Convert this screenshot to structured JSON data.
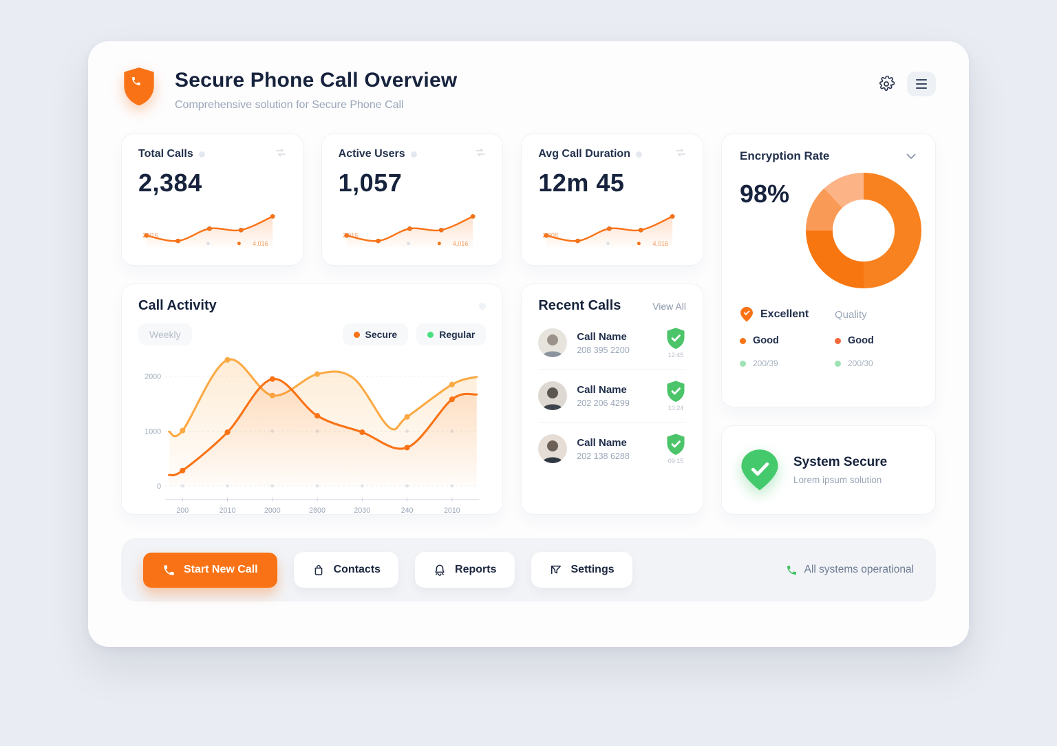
{
  "app": {
    "title": "Secure Phone Call Overview",
    "subtitle": "Comprehensive solution for Secure Phone Call"
  },
  "colors": {
    "accent": "#f97316",
    "accent_light": "#fbaa45",
    "green": "#3fc163",
    "legend_green": "#4ade80",
    "text_dark": "#17233d",
    "text_muted": "#9aa6b8",
    "page_bg": "#e9ecf2",
    "footer_bg": "#f1f3f7"
  },
  "stat_cards": [
    {
      "title": "Total Calls",
      "value": "2,384",
      "spark_label_left": "2,016",
      "spark_label_right": "4,016",
      "trend": [
        420,
        260,
        620,
        580,
        980
      ]
    },
    {
      "title": "Active Users",
      "value": "1,057",
      "spark_label_left": "2,016",
      "spark_label_right": "4,016",
      "trend": [
        420,
        260,
        620,
        580,
        980
      ]
    },
    {
      "title": "Avg Call Duration",
      "value": "12m 45",
      "spark_label_left": "2,808",
      "spark_label_right": "4,016",
      "trend": [
        420,
        260,
        620,
        580,
        980
      ]
    }
  ],
  "call_activity": {
    "title": "Call Activity",
    "period": "Weekly",
    "legend": [
      {
        "label": "Secure",
        "color": "#f97316"
      },
      {
        "label": "Regular",
        "color": "#4ade80"
      }
    ]
  },
  "chart_data": [
    {
      "type": "line",
      "title": "Call Activity (Weekly)",
      "x_ticks": [
        "200",
        "2010",
        "2000",
        "2800",
        "2030",
        "240",
        "2010"
      ],
      "y_ticks": [
        2000,
        1000,
        0
      ],
      "ylim": [
        0,
        2400
      ],
      "grid": true,
      "legend_position": "top-right",
      "series": [
        {
          "name": "Secure",
          "color": "#f97316",
          "points": [
            [
              -0.3,
              200
            ],
            [
              0,
              280
            ],
            [
              1,
              980
            ],
            [
              2,
              1950
            ],
            [
              3,
              1280
            ],
            [
              4,
              980
            ],
            [
              5,
              700
            ],
            [
              6,
              1580
            ],
            [
              6.55,
              1670
            ]
          ]
        },
        {
          "name": "Regular",
          "color": "#fbaa45",
          "points": [
            [
              -0.3,
              990
            ],
            [
              0,
              1010
            ],
            [
              1,
              2300
            ],
            [
              2,
              1650
            ],
            [
              3,
              2040
            ],
            [
              3.8,
              1970
            ],
            [
              4.6,
              1070
            ],
            [
              5,
              1260
            ],
            [
              6,
              1850
            ],
            [
              6.55,
              1990
            ]
          ]
        }
      ]
    },
    {
      "type": "donut",
      "title": "Encryption Rate",
      "center_label": "98%",
      "encrypted_pct": 98,
      "segments": [
        {
          "value": 50,
          "color": "#f8821f"
        },
        {
          "value": 25,
          "color": "#f8760f"
        },
        {
          "value": 13,
          "color": "#f99a57"
        },
        {
          "value": 12,
          "color": "#fcb487"
        }
      ]
    }
  ],
  "encryption": {
    "title": "Encryption Rate",
    "value": "98%",
    "legend": {
      "headline": "Excellent",
      "headline_caption": "Quality",
      "items": [
        {
          "label": "Good",
          "color": "#f97316"
        },
        {
          "label": "Good",
          "color": "#f4683a"
        }
      ],
      "sub_items": [
        {
          "label": "200/39",
          "color": "#9fe3b5"
        },
        {
          "label": "200/30",
          "color": "#9fe3b5"
        }
      ]
    }
  },
  "recent_calls": {
    "title": "Recent Calls",
    "view_all": "View All",
    "items": [
      {
        "name": "Call Name",
        "phone": "208 395 2200",
        "time": "12:45"
      },
      {
        "name": "Call Name",
        "phone": "202 206 4299",
        "time": "10:24"
      },
      {
        "name": "Call Name",
        "phone": "202 138 6288",
        "time": "09:15"
      }
    ]
  },
  "system_status": {
    "title": "System Secure",
    "subtitle": "Lorem ipsum solution"
  },
  "footer": {
    "primary_button": "Start New Call",
    "buttons": [
      "Contacts",
      "Reports",
      "Settings"
    ],
    "status_text": "All systems operational"
  }
}
